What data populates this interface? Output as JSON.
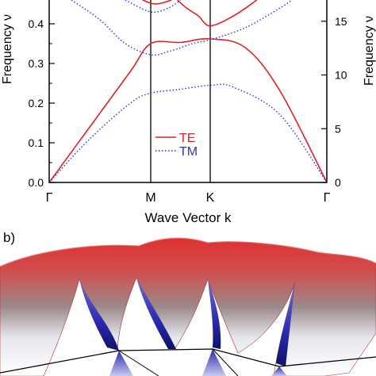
{
  "chart_data": [
    {
      "type": "line",
      "panel_label": "",
      "xlabel": "Wave Vector k",
      "ylabel_left": "Frequency ν",
      "ylabel_right": "Frequency ν",
      "x_ticks": [
        "Γ",
        "M",
        "K",
        "Γ"
      ],
      "x": [
        0,
        1,
        2,
        3
      ],
      "ylim_left": [
        0,
        0.45
      ],
      "yticks_left": [
        "0.0",
        "0.1",
        "0.2",
        "0.3",
        "0.4"
      ],
      "ylim_right": [
        0,
        17
      ],
      "yticks_right": [
        "0",
        "5",
        "10",
        "15"
      ],
      "legend": {
        "position": "center",
        "entries": [
          "TE",
          "TM"
        ]
      },
      "colors": {
        "TE": "#dd2222",
        "TM": "#3030cc"
      },
      "series": [
        {
          "name": "TE",
          "style": "solid",
          "band": 1,
          "points": [
            [
              0,
              0
            ],
            [
              0.4,
              0.14
            ],
            [
              0.8,
              0.28
            ],
            [
              1,
              0.35
            ],
            [
              1.5,
              0.353
            ],
            [
              2,
              0.362
            ],
            [
              2.3,
              0.34
            ],
            [
              2.6,
              0.23
            ],
            [
              3,
              0
            ]
          ]
        },
        {
          "name": "TE",
          "style": "solid",
          "band": 2,
          "points": [
            [
              0.92,
              0.46
            ],
            [
              1,
              0.452
            ],
            [
              1.1,
              0.45
            ],
            [
              1.25,
              0.455
            ],
            [
              1.35,
              0.46
            ]
          ]
        },
        {
          "name": "TE",
          "style": "solid",
          "band": 3,
          "points": [
            [
              1.45,
              0.46
            ],
            [
              1.6,
              0.44
            ],
            [
              1.8,
              0.42
            ],
            [
              2,
              0.395
            ],
            [
              2.2,
              0.42
            ],
            [
              2.4,
              0.46
            ]
          ]
        },
        {
          "name": "TM",
          "style": "dotted",
          "band": 1,
          "points": [
            [
              0,
              0
            ],
            [
              0.4,
              0.11
            ],
            [
              0.8,
              0.2
            ],
            [
              1,
              0.225
            ],
            [
              1.5,
              0.235
            ],
            [
              2,
              0.245
            ],
            [
              2.2,
              0.24
            ],
            [
              2.6,
              0.17
            ],
            [
              3,
              0
            ]
          ]
        },
        {
          "name": "TM",
          "style": "dotted",
          "band": 2,
          "points": [
            [
              0.22,
              0.46
            ],
            [
              0.5,
              0.41
            ],
            [
              0.75,
              0.35
            ],
            [
              1,
              0.322
            ],
            [
              1.3,
              0.33
            ],
            [
              1.7,
              0.35
            ],
            [
              2,
              0.36
            ],
            [
              2.3,
              0.39
            ],
            [
              2.6,
              0.44
            ],
            [
              2.7,
              0.46
            ]
          ]
        },
        {
          "name": "TM",
          "style": "dotted",
          "band": 3,
          "points": [
            [
              0.75,
              0.46
            ],
            [
              1,
              0.43
            ],
            [
              1.3,
              0.44
            ],
            [
              1.5,
              0.46
            ]
          ]
        }
      ]
    },
    {
      "type": "surface",
      "panel_label": "b)"
    }
  ]
}
